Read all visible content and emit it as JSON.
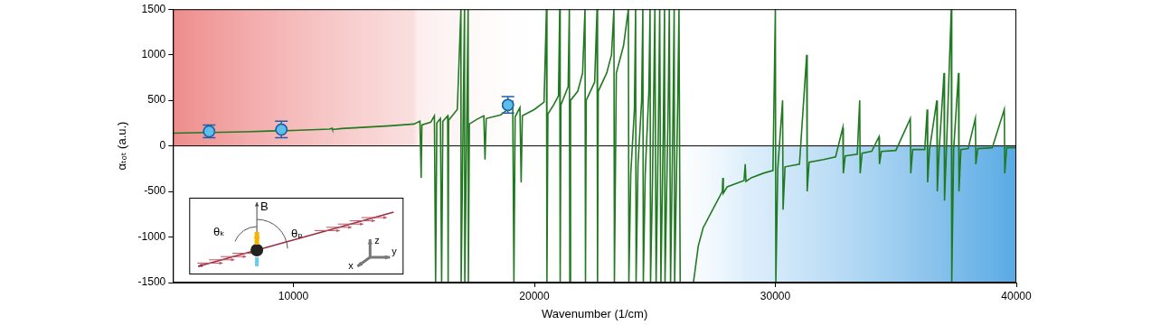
{
  "chart_data": {
    "type": "line",
    "xlabel": "Wavenumber (1/cm)",
    "ylabel": "αₜₒₜ (a.u.)",
    "xlim": [
      5000,
      40000
    ],
    "xticks": [
      10000,
      20000,
      30000,
      40000
    ],
    "ylim": [
      -1500,
      1500
    ],
    "yticks": [
      -1500,
      -1000,
      -500,
      0,
      500,
      1000,
      1500
    ],
    "grid": false,
    "reference_lines": [
      0
    ],
    "series": [
      {
        "type": "line",
        "color": "#217a21",
        "line_style": "solid",
        "x": [
          5000,
          6000,
          7000,
          8000,
          9000,
          10000,
          11000,
          11500,
          11600,
          11620,
          12000,
          13000,
          14000,
          15000,
          15250,
          15300,
          15330,
          15700,
          15850,
          15900,
          15950,
          16100,
          16150,
          16200,
          16400,
          16420,
          16440,
          16800,
          16950,
          16960,
          17100,
          17110,
          17250,
          17260,
          17300,
          17600,
          17900,
          17950,
          18000,
          18600,
          18900,
          19100,
          19150,
          19200,
          19400,
          19450,
          19500,
          20000,
          20400,
          20500,
          20520,
          20560,
          20800,
          21000,
          21050,
          21070,
          21100,
          21400,
          21450,
          21470,
          21500,
          21800,
          22000,
          22100,
          22120,
          22150,
          22500,
          22600,
          22620,
          22650,
          23000,
          23200,
          23300,
          23320,
          23400,
          23700,
          23900,
          23920,
          24000,
          24150,
          24200,
          24220,
          24300,
          24450,
          24500,
          24520,
          24600,
          24750,
          24800,
          24820,
          24900,
          25000,
          25050,
          25150,
          25200,
          25250,
          25350,
          25400,
          25420,
          25550,
          25600,
          25650,
          25750,
          25800,
          25820,
          25950,
          26000,
          26050,
          26600,
          26800,
          27000,
          27500,
          27800,
          27820,
          27840,
          28000,
          28500,
          28700,
          28750,
          28780,
          29000,
          29500,
          29900,
          30000,
          30020,
          30100,
          30300,
          30320,
          30400,
          31000,
          31300,
          31320,
          31400,
          32000,
          32500,
          32800,
          32820,
          32900,
          33400,
          33500,
          33520,
          33600,
          34000,
          34300,
          34320,
          34400,
          35000,
          35600,
          35620,
          35700,
          36200,
          36300,
          36320,
          36400,
          36700,
          36720,
          36800,
          37000,
          37020,
          37100,
          37300,
          37320,
          37400,
          37600,
          37620,
          37700,
          38000,
          38300,
          38320,
          38400,
          39000,
          39500,
          39520,
          39600,
          40000
        ],
        "values": [
          140,
          145,
          150,
          155,
          163,
          170,
          180,
          185,
          195,
          180,
          190,
          205,
          220,
          240,
          270,
          -350,
          230,
          260,
          330,
          -1500,
          250,
          300,
          -1500,
          270,
          330,
          -1500,
          280,
          400,
          1500,
          -1500,
          1500,
          -1500,
          1500,
          -1500,
          240,
          290,
          330,
          -150,
          300,
          340,
          400,
          480,
          -1500,
          320,
          420,
          -400,
          330,
          400,
          480,
          1500,
          -1500,
          350,
          450,
          550,
          1500,
          -1500,
          450,
          650,
          1500,
          -1500,
          500,
          600,
          800,
          1500,
          -1500,
          500,
          700,
          1500,
          -1500,
          600,
          800,
          1000,
          1500,
          -1500,
          800,
          1100,
          1500,
          -1500,
          -300,
          400,
          1500,
          -1500,
          -200,
          500,
          1500,
          -1500,
          -300,
          600,
          1500,
          -1500,
          -400,
          1500,
          -1500,
          300,
          1500,
          -1500,
          200,
          1500,
          -1500,
          400,
          1500,
          -1500,
          300,
          1500,
          -1500,
          500,
          1500,
          -1500,
          -1500,
          -1100,
          -900,
          -650,
          -500,
          -350,
          -520,
          -450,
          -400,
          -380,
          -200,
          -390,
          -350,
          -300,
          -270,
          1500,
          -1500,
          -250,
          500,
          -700,
          -230,
          -200,
          1000,
          -500,
          -180,
          -150,
          -120,
          200,
          -300,
          -110,
          -90,
          500,
          -300,
          -80,
          -60,
          100,
          -200,
          -60,
          -50,
          300,
          -300,
          -40,
          -40,
          400,
          -400,
          -40,
          500,
          -500,
          -40,
          800,
          -600,
          -40,
          1500,
          -1500,
          -40,
          800,
          -500,
          -40,
          -30,
          300,
          -200,
          -30,
          -20,
          400,
          -300,
          -20,
          -20
        ]
      },
      {
        "type": "scatter",
        "color": "#5bbfea",
        "marker": "circle",
        "x": [
          6500,
          9500,
          18900
        ],
        "values": [
          160,
          180,
          450
        ],
        "errors": [
          70,
          90,
          90
        ]
      }
    ],
    "inset_labels": {
      "field": "B",
      "angle_k": "θₖ",
      "angle_p": "θₚ",
      "axis_x": "x",
      "axis_y": "y",
      "axis_z": "z"
    }
  }
}
